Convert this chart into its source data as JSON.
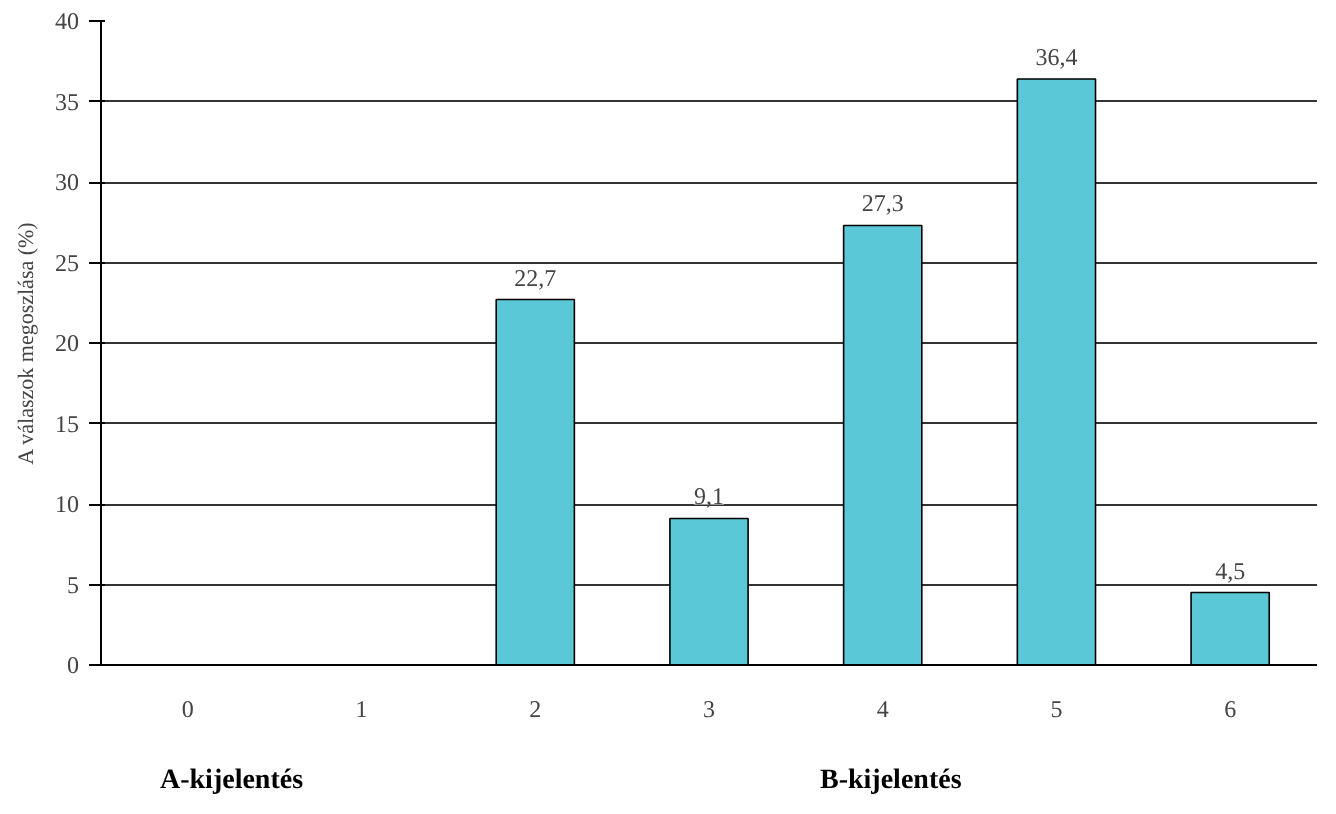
{
  "chart_data": {
    "type": "bar",
    "ylabel": "A válaszok megoszlása (%)",
    "categories": [
      "0",
      "1",
      "2",
      "3",
      "4",
      "5",
      "6"
    ],
    "values": [
      0,
      0,
      22.7,
      9.1,
      27.3,
      36.4,
      4.5
    ],
    "value_labels": [
      null,
      null,
      "22,7",
      "9,1",
      "27,3",
      "36,4",
      "4,5"
    ],
    "color": "#5bc8d8",
    "ylim": [
      0,
      40
    ],
    "yticks": [
      0,
      5,
      10,
      15,
      20,
      25,
      30,
      35,
      40
    ],
    "grid": "y",
    "annotations": [
      "A-kijelentés",
      "B-kijelentés"
    ]
  }
}
